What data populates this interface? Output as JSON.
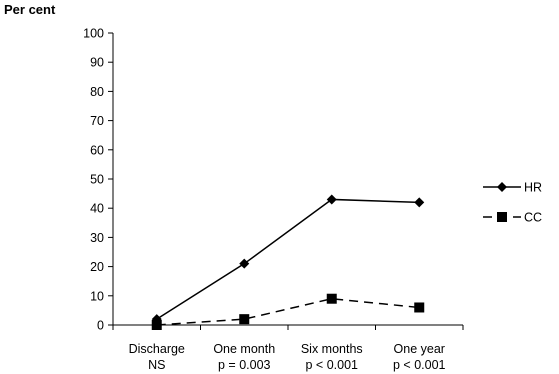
{
  "chart_data": {
    "type": "line",
    "title": "",
    "ylabel": "Per cent",
    "xlabel": "",
    "ylim": [
      0,
      100
    ],
    "yticks": [
      0,
      10,
      20,
      30,
      40,
      50,
      60,
      70,
      80,
      90,
      100
    ],
    "categories": [
      "Discharge",
      "One month",
      "Six months",
      "One year"
    ],
    "category_notes": [
      "NS",
      "p = 0.003",
      "p < 0.001",
      "p < 0.001"
    ],
    "series": [
      {
        "name": "HR",
        "values": [
          2,
          21,
          43,
          42
        ],
        "line": "solid",
        "marker": "diamond",
        "color": "#000000"
      },
      {
        "name": "CC",
        "values": [
          0,
          2,
          9,
          6
        ],
        "line": "dashed",
        "marker": "square",
        "color": "#000000"
      }
    ],
    "grid": false,
    "legend_position": "right"
  }
}
